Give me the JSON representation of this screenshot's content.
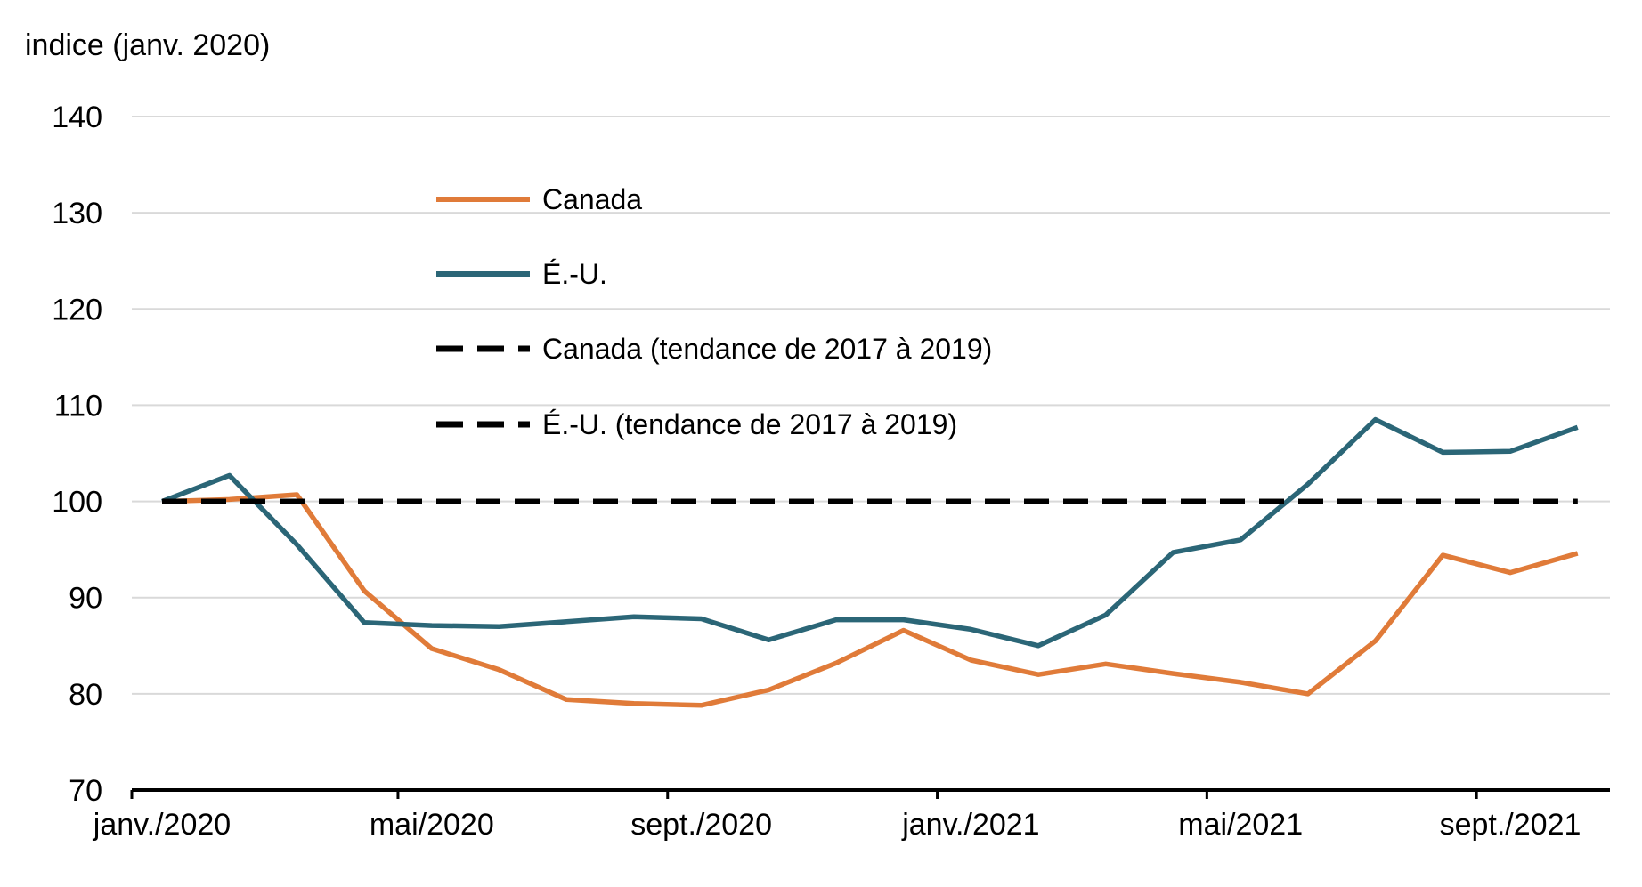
{
  "chart_data": {
    "type": "line",
    "title": "",
    "ylabel": "indice (janv. 2020)",
    "xlabel": "",
    "ylim": [
      70,
      140
    ],
    "yticks": [
      70,
      80,
      90,
      100,
      110,
      120,
      130,
      140
    ],
    "grid": true,
    "x": [
      "2020-01",
      "2020-02",
      "2020-03",
      "2020-04",
      "2020-05",
      "2020-06",
      "2020-07",
      "2020-08",
      "2020-09",
      "2020-10",
      "2020-11",
      "2020-12",
      "2021-01",
      "2021-02",
      "2021-03",
      "2021-04",
      "2021-05",
      "2021-06",
      "2021-07",
      "2021-08",
      "2021-09",
      "2021-10"
    ],
    "xtick_labels": [
      {
        "index": 0,
        "label": "janv./2020"
      },
      {
        "index": 4,
        "label": "mai/2020"
      },
      {
        "index": 8,
        "label": "sept./2020"
      },
      {
        "index": 12,
        "label": "janv./2021"
      },
      {
        "index": 16,
        "label": "mai/2021"
      },
      {
        "index": 20,
        "label": "sept./2021"
      }
    ],
    "legend_position": "upper-center",
    "series": [
      {
        "name": "Canada",
        "color": "#E07B39",
        "style": "solid",
        "values": [
          100,
          100.2,
          100.7,
          90.7,
          84.7,
          82.5,
          79.4,
          79.0,
          78.8,
          80.4,
          83.2,
          86.6,
          83.5,
          82.0,
          83.1,
          82.1,
          81.2,
          80.0,
          85.5,
          94.4,
          92.6,
          94.6
        ]
      },
      {
        "name": "É.-U.",
        "color": "#2B6677",
        "style": "solid",
        "values": [
          100,
          102.7,
          95.5,
          87.4,
          87.1,
          87.0,
          87.5,
          88.0,
          87.8,
          85.6,
          87.7,
          87.7,
          86.7,
          85.0,
          88.2,
          94.7,
          96.0,
          101.8,
          108.5,
          105.1,
          105.2,
          107.7
        ]
      },
      {
        "name": "Canada (tendance de 2017 à 2019)",
        "color": "#000000",
        "style": "dashed",
        "values": [
          100,
          100,
          100,
          100,
          100,
          100,
          100,
          100,
          100,
          100,
          100,
          100,
          100,
          100,
          100,
          100,
          100,
          100,
          100,
          100,
          100,
          100
        ]
      },
      {
        "name": "É.-U. (tendance de 2017 à 2019)",
        "color": "#000000",
        "style": "dashed",
        "values": [
          100,
          100,
          100,
          100,
          100,
          100,
          100,
          100,
          100,
          100,
          100,
          100,
          100,
          100,
          100,
          100,
          100,
          100,
          100,
          100,
          100,
          100
        ]
      }
    ]
  }
}
